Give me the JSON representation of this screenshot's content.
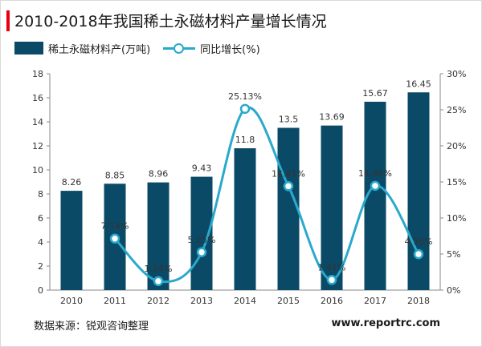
{
  "title": "2010-2018年我国稀土永磁材料产量增长情况",
  "legend": {
    "bar_label": "稀土永磁材料产(万吨)",
    "line_label": "同比增长(%)"
  },
  "source": "数据来源：锐观咨询整理",
  "watermark": "www.reportrc.com",
  "colors": {
    "title_accent": "#e60012",
    "bar": "#0b4a66",
    "line": "#2aa9cc"
  },
  "chart_data": {
    "type": "bar",
    "categories": [
      "2010",
      "2011",
      "2012",
      "2013",
      "2014",
      "2015",
      "2016",
      "2017",
      "2018"
    ],
    "series": [
      {
        "name": "稀土永磁材料产(万吨)",
        "type": "bar",
        "axis": "left",
        "values": [
          8.26,
          8.85,
          8.96,
          9.43,
          11.8,
          13.5,
          13.69,
          15.67,
          16.45
        ],
        "labels": [
          "8.26",
          "8.85",
          "8.96",
          "9.43",
          "11.8",
          "13.5",
          "13.69",
          "15.67",
          "16.45"
        ]
      },
      {
        "name": "同比增长(%)",
        "type": "line",
        "smooth": true,
        "axis": "right",
        "values": [
          null,
          7.14,
          1.24,
          5.25,
          25.13,
          14.41,
          1.41,
          14.46,
          4.98
        ],
        "labels": [
          "",
          "7.14%",
          "1.24%",
          "5.25%",
          "25.13%",
          "14.41%",
          "1.41%",
          "14.46%",
          "4.98%"
        ]
      }
    ],
    "y_left": {
      "ylim": [
        0,
        18
      ],
      "ticks": [
        "0",
        "2",
        "4",
        "6",
        "8",
        "10",
        "12",
        "14",
        "16",
        "18"
      ]
    },
    "y_right": {
      "ylim": [
        0,
        30
      ],
      "ticks": [
        "0%",
        "5%",
        "10%",
        "15%",
        "20%",
        "25%",
        "30%"
      ]
    },
    "grid": false,
    "legend_position": "top-left"
  }
}
